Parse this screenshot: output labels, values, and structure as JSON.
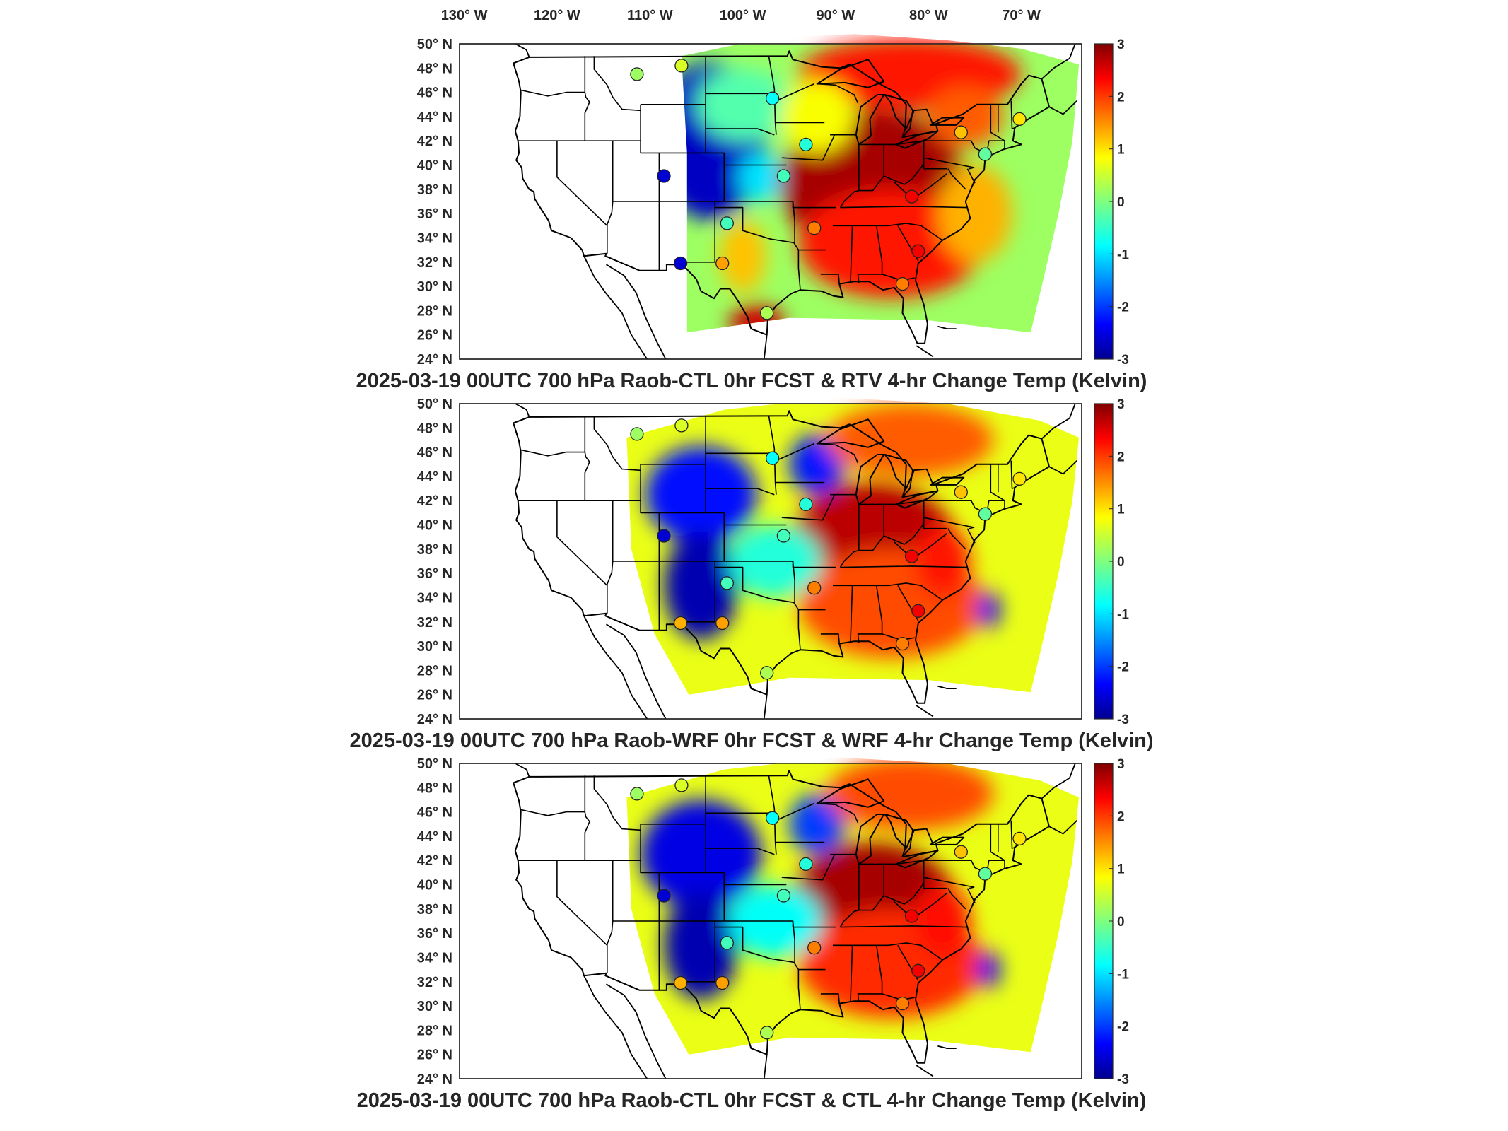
{
  "figure": {
    "top_lon_labels": [
      "130",
      "120",
      "110",
      "100",
      "90",
      "80",
      "70"
    ],
    "lon_hemisphere": "W",
    "lat_labels": [
      "50",
      "48",
      "46",
      "44",
      "42",
      "40",
      "38",
      "36",
      "34",
      "32",
      "30",
      "28",
      "26",
      "24"
    ],
    "lat_hemisphere": "N",
    "degree_symbol": "°",
    "colorbar": {
      "min": -3,
      "max": 3,
      "tick_labels": [
        "3",
        "2",
        "1",
        "0",
        "-1",
        "-2",
        "-3"
      ],
      "colormap": "jet"
    }
  },
  "panels": [
    {
      "title": "2025-03-19 00UTC 700 hPa Raob-CTL 0hr FCST & RTV 4-hr Change Temp (Kelvin)",
      "field": "rtv"
    },
    {
      "title": "2025-03-19 00UTC 700 hPa Raob-WRF 0hr FCST & WRF 4-hr Change Temp (Kelvin)",
      "field": "wrf"
    },
    {
      "title": "2025-03-19 00UTC 700 hPa Raob-CTL 0hr FCST & CTL 4-hr Change Temp (Kelvin)",
      "field": "ctl"
    }
  ],
  "raob_stations": [
    {
      "lon": -111.4,
      "lat": 47.5,
      "values": [
        0.2,
        0.2,
        0.2
      ]
    },
    {
      "lon": -106.6,
      "lat": 48.2,
      "values": [
        0.6,
        0.6,
        0.6
      ]
    },
    {
      "lon": -108.5,
      "lat": 39.1,
      "values": [
        -2.6,
        -2.6,
        -2.6
      ]
    },
    {
      "lon": -106.7,
      "lat": 31.9,
      "values": [
        -2.6,
        1.3,
        1.3
      ]
    },
    {
      "lon": -101.7,
      "lat": 35.2,
      "values": [
        -0.4,
        -0.4,
        -0.4
      ]
    },
    {
      "lon": -102.2,
      "lat": 31.9,
      "values": [
        1.4,
        1.4,
        1.4
      ]
    },
    {
      "lon": -97.4,
      "lat": 27.8,
      "values": [
        0.3,
        0.3,
        0.3
      ]
    },
    {
      "lon": -95.6,
      "lat": 39.1,
      "values": [
        -0.4,
        -0.4,
        -0.4
      ]
    },
    {
      "lon": -92.3,
      "lat": 34.8,
      "values": [
        1.6,
        1.6,
        1.6
      ]
    },
    {
      "lon": -93.2,
      "lat": 41.7,
      "values": [
        -0.6,
        -0.6,
        -0.6
      ]
    },
    {
      "lon": -96.8,
      "lat": 45.5,
      "values": [
        -0.8,
        -0.8,
        -0.8
      ]
    },
    {
      "lon": -81.1,
      "lat": 32.9,
      "values": [
        2.4,
        2.4,
        2.4
      ]
    },
    {
      "lon": -81.8,
      "lat": 37.4,
      "values": [
        2.4,
        2.4,
        2.4
      ]
    },
    {
      "lon": -82.8,
      "lat": 30.2,
      "values": [
        1.6,
        1.6,
        1.6
      ]
    },
    {
      "lon": -76.5,
      "lat": 42.7,
      "values": [
        1.2,
        1.2,
        1.2
      ]
    },
    {
      "lon": -73.9,
      "lat": 40.9,
      "values": [
        -0.2,
        -0.2,
        -0.2
      ]
    },
    {
      "lon": -70.2,
      "lat": 43.8,
      "values": [
        1.0,
        1.0,
        1.0
      ]
    }
  ],
  "field_features": {
    "rtv": [
      {
        "lon": -103.5,
        "lat": 42.0,
        "rx": 6,
        "ry": 6.5,
        "v": -2.7
      },
      {
        "lon": -100.0,
        "lat": 32.5,
        "rx": 2.5,
        "ry": 3,
        "v": 1.2
      },
      {
        "lon": -98.0,
        "lat": 39.0,
        "rx": 2.5,
        "ry": 2,
        "v": -1.0
      },
      {
        "lon": -86.0,
        "lat": 38.5,
        "rx": 10,
        "ry": 6,
        "v": 2.8
      },
      {
        "lon": -84.0,
        "lat": 33.5,
        "rx": 10,
        "ry": 4.5,
        "v": 2.2
      },
      {
        "lon": -82.0,
        "lat": 47.5,
        "rx": 12,
        "ry": 3,
        "v": 2.2
      },
      {
        "lon": -76.0,
        "lat": 44.0,
        "rx": 4,
        "ry": 2.5,
        "v": 1.8
      },
      {
        "lon": -75.0,
        "lat": 36.0,
        "rx": 4,
        "ry": 4,
        "v": 1.3
      },
      {
        "lon": -100.0,
        "lat": 45.0,
        "rx": 5,
        "ry": 3,
        "v": -0.3
      },
      {
        "lon": -92.0,
        "lat": 44.0,
        "rx": 4,
        "ry": 3,
        "v": 0.8
      },
      {
        "lon": -98.5,
        "lat": 27.0,
        "rx": 3,
        "ry": 1.5,
        "v": 2.6
      }
    ],
    "wrf": [
      {
        "lon": -104.5,
        "lat": 42.5,
        "rx": 6,
        "ry": 4,
        "v": -2.3
      },
      {
        "lon": -104.5,
        "lat": 35.0,
        "rx": 4,
        "ry": 4.5,
        "v": -2.8
      },
      {
        "lon": -92.0,
        "lat": 45.0,
        "rx": 3,
        "ry": 2.5,
        "v": -2.2
      },
      {
        "lon": -86.0,
        "lat": 38.5,
        "rx": 9,
        "ry": 5,
        "v": 2.7
      },
      {
        "lon": -84.0,
        "lat": 33.5,
        "rx": 10,
        "ry": 4.5,
        "v": 1.9
      },
      {
        "lon": -82.0,
        "lat": 47.0,
        "rx": 9,
        "ry": 3,
        "v": 1.8
      },
      {
        "lon": -96.5,
        "lat": 37.0,
        "rx": 5,
        "ry": 3,
        "v": -0.6
      },
      {
        "lon": -73.5,
        "lat": 33.0,
        "rx": 1.2,
        "ry": 1.5,
        "v": -2.4
      },
      {
        "lon": -78.5,
        "lat": 37.0,
        "rx": 3,
        "ry": 3,
        "v": 2.2
      }
    ],
    "ctl": [
      {
        "lon": -104.5,
        "lat": 42.5,
        "rx": 6.5,
        "ry": 4.5,
        "v": -2.5
      },
      {
        "lon": -104.5,
        "lat": 35.0,
        "rx": 4,
        "ry": 4.5,
        "v": -2.8
      },
      {
        "lon": -92.0,
        "lat": 45.0,
        "rx": 3,
        "ry": 2.5,
        "v": -2.0
      },
      {
        "lon": -86.0,
        "lat": 38.5,
        "rx": 9,
        "ry": 5,
        "v": 2.8
      },
      {
        "lon": -84.0,
        "lat": 33.5,
        "rx": 10,
        "ry": 4.5,
        "v": 2.1
      },
      {
        "lon": -82.0,
        "lat": 47.5,
        "rx": 9,
        "ry": 3,
        "v": 1.9
      },
      {
        "lon": -96.5,
        "lat": 37.0,
        "rx": 5,
        "ry": 3,
        "v": -0.8
      },
      {
        "lon": -73.5,
        "lat": 33.0,
        "rx": 1.2,
        "ry": 1.5,
        "v": -2.4
      },
      {
        "lon": -78.5,
        "lat": 37.0,
        "rx": 3,
        "ry": 3,
        "v": 2.3
      }
    ]
  }
}
